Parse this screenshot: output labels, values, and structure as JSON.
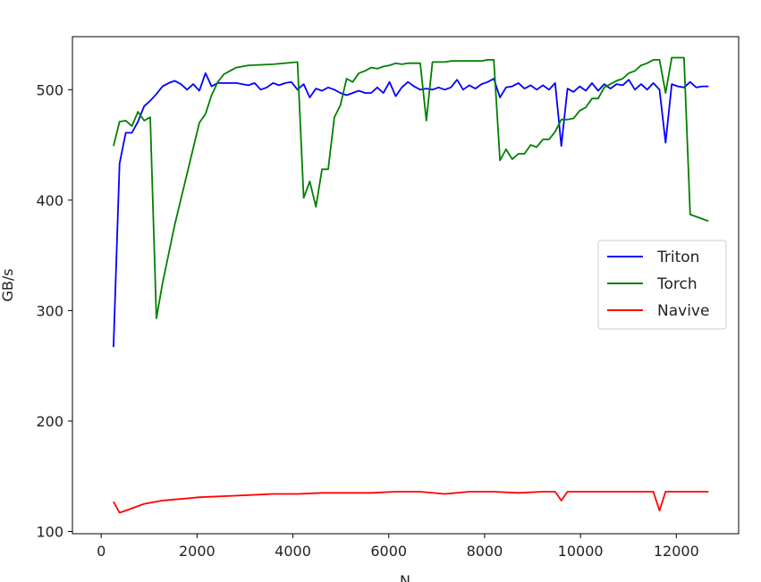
{
  "chart_data": {
    "type": "line",
    "xlabel": "N",
    "ylabel": "GB/s",
    "xlim": [
      -600,
      13300
    ],
    "ylim": [
      98,
      548
    ],
    "xticks": [
      0,
      2000,
      4000,
      6000,
      8000,
      10000,
      12000
    ],
    "yticks": [
      100,
      200,
      300,
      400,
      500
    ],
    "grid": false,
    "legend_position": "center-right",
    "series": [
      {
        "name": "Triton",
        "color": "#0000ff",
        "x": [
          256,
          384,
          512,
          640,
          768,
          896,
          1024,
          1152,
          1280,
          1408,
          1536,
          1664,
          1792,
          1920,
          2048,
          2176,
          2304,
          2432,
          2560,
          2688,
          2816,
          2944,
          3072,
          3200,
          3328,
          3456,
          3584,
          3712,
          3840,
          3968,
          4096,
          4224,
          4352,
          4480,
          4608,
          4736,
          4864,
          4992,
          5120,
          5248,
          5376,
          5504,
          5632,
          5760,
          5888,
          6016,
          6144,
          6272,
          6400,
          6528,
          6656,
          6784,
          6912,
          7040,
          7168,
          7296,
          7424,
          7552,
          7680,
          7808,
          7936,
          8064,
          8192,
          8320,
          8448,
          8576,
          8704,
          8832,
          8960,
          9088,
          9216,
          9344,
          9472,
          9600,
          9728,
          9856,
          9984,
          10112,
          10240,
          10368,
          10496,
          10624,
          10752,
          10880,
          11008,
          11136,
          11264,
          11392,
          11520,
          11648,
          11776,
          11904,
          12032,
          12160,
          12288,
          12416,
          12544,
          12672
        ],
        "values": [
          267,
          433,
          461,
          461,
          471,
          485,
          490,
          496,
          503,
          506,
          508,
          505,
          500,
          505,
          499,
          515,
          503,
          506,
          506,
          506,
          506,
          505,
          504,
          506,
          500,
          502,
          506,
          504,
          506,
          507,
          500,
          505,
          493,
          501,
          499,
          502,
          500,
          497,
          495,
          497,
          499,
          497,
          497,
          502,
          497,
          507,
          494,
          502,
          507,
          503,
          500,
          501,
          500,
          502,
          500,
          502,
          509,
          500,
          504,
          501,
          505,
          507,
          510,
          493,
          502,
          503,
          506,
          501,
          504,
          500,
          504,
          500,
          506,
          449,
          501,
          498,
          503,
          499,
          506,
          499,
          505,
          501,
          505,
          504,
          509,
          500,
          505,
          500,
          506,
          500,
          452,
          505,
          503,
          502,
          507,
          502,
          503,
          503
        ]
      },
      {
        "name": "Torch",
        "color": "#008000",
        "x": [
          256,
          384,
          512,
          640,
          768,
          896,
          1024,
          1152,
          1280,
          1536,
          1792,
          2048,
          2176,
          2304,
          2432,
          2560,
          2688,
          2816,
          3072,
          3584,
          4096,
          4224,
          4352,
          4480,
          4608,
          4736,
          4864,
          4992,
          5120,
          5248,
          5376,
          5504,
          5632,
          5760,
          5888,
          6016,
          6144,
          6272,
          6400,
          6528,
          6656,
          6784,
          6912,
          7040,
          7168,
          7296,
          7424,
          7552,
          7680,
          7808,
          7936,
          8064,
          8192,
          8320,
          8448,
          8576,
          8704,
          8832,
          8960,
          9088,
          9216,
          9344,
          9472,
          9600,
          9728,
          9856,
          9984,
          10112,
          10240,
          10368,
          10496,
          10624,
          10752,
          10880,
          11008,
          11136,
          11264,
          11392,
          11520,
          11648,
          11776,
          11904,
          12032,
          12160,
          12288,
          12416,
          12544,
          12672
        ],
        "values": [
          449,
          471,
          472,
          467,
          480,
          472,
          475,
          293,
          325,
          378,
          424,
          470,
          478,
          495,
          507,
          514,
          517,
          520,
          522,
          523,
          525,
          402,
          417,
          394,
          428,
          428,
          475,
          486,
          510,
          507,
          515,
          517,
          520,
          519,
          521,
          522,
          524,
          523,
          524,
          524,
          524,
          472,
          525,
          525,
          525,
          526,
          526,
          526,
          526,
          526,
          526,
          527,
          527,
          436,
          446,
          437,
          442,
          442,
          450,
          448,
          455,
          455,
          462,
          473,
          473,
          474,
          481,
          484,
          492,
          492,
          502,
          505,
          508,
          510,
          515,
          517,
          522,
          524,
          527,
          527,
          497,
          529,
          529,
          529,
          387,
          385,
          383,
          381
        ]
      },
      {
        "name": "Navive",
        "color": "#ff0000",
        "x": [
          256,
          384,
          512,
          640,
          768,
          896,
          1024,
          1280,
          1536,
          1792,
          2048,
          2560,
          3072,
          3584,
          4096,
          4608,
          5120,
          5632,
          6144,
          6656,
          7168,
          7680,
          8192,
          8704,
          9216,
          9472,
          9600,
          9728,
          9984,
          10496,
          11008,
          11520,
          11648,
          11776,
          12032,
          12544,
          12672
        ],
        "values": [
          127,
          117,
          119,
          121,
          123,
          125,
          126,
          128,
          129,
          130,
          131,
          132,
          133,
          134,
          134,
          135,
          135,
          135,
          136,
          136,
          134,
          136,
          136,
          135,
          136,
          136,
          128,
          136,
          136,
          136,
          136,
          136,
          119,
          136,
          136,
          136,
          136
        ]
      }
    ]
  }
}
